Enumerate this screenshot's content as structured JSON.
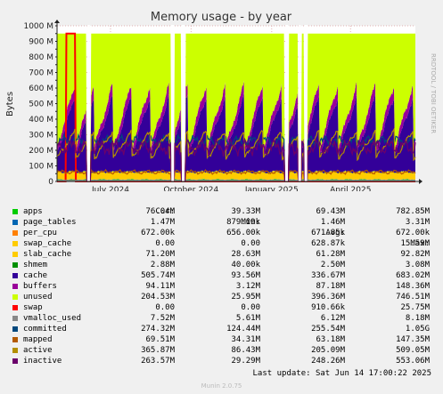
{
  "chart_data": {
    "type": "area",
    "title": "Memory usage - by year",
    "ylabel": "Bytes",
    "side_label": "RRDTOOL / TOBI OETIKER",
    "ylim": [
      0,
      1000
    ],
    "y_unit": "M",
    "y_ticks": [
      "0",
      "50 M",
      "100 M",
      "150 M",
      "200 M",
      "250 M",
      "300 M",
      "350 M",
      "400 M",
      "450 M",
      "500 M",
      "550 M",
      "600 M",
      "650 M",
      "700 M",
      "750 M",
      "800 M",
      "850 M",
      "900 M",
      "950 M",
      "1000 M"
    ],
    "x_ticks": [
      {
        "label": "July 2024",
        "x": "2024-07-01"
      },
      {
        "label": "October 2024",
        "x": "2024-10-01"
      },
      {
        "label": "January 2025",
        "x": "2025-01-01"
      },
      {
        "label": "April 2025",
        "x": "2025-04-01"
      }
    ],
    "x_range": [
      "2024-05-01",
      "2025-06-14"
    ],
    "gaps": [
      "2024-06-06",
      "2024-09-10",
      "2024-09-22",
      "2025-01-18",
      "2025-02-02",
      "2025-02-09"
    ],
    "grid": true,
    "stacked_series": [
      "apps",
      "page_tables",
      "per_cpu",
      "swap_cache",
      "slab_cache",
      "shmem",
      "cache",
      "buffers",
      "unused"
    ],
    "line_series": [
      "swap",
      "vmalloc_used",
      "committed",
      "mapped",
      "active",
      "inactive"
    ],
    "legend_headers": [
      "Cur:",
      "Min:",
      "Avg:",
      "Max:"
    ],
    "series": [
      {
        "name": "apps",
        "color": "#00cc00",
        "cur": "76.04M",
        "min": "39.33M",
        "avg": "69.43M",
        "max": "782.85M"
      },
      {
        "name": "page_tables",
        "color": "#0066b3",
        "cur": "1.47M",
        "min": "879.09k",
        "avg": "1.46M",
        "max": "3.31M"
      },
      {
        "name": "per_cpu",
        "color": "#ff8000",
        "cur": "672.00k",
        "min": "656.00k",
        "avg": "671.85k",
        "max": "672.00k"
      },
      {
        "name": "swap_cache",
        "color": "#ffcc00",
        "cur": "0.00",
        "min": "0.00",
        "avg": "628.87k",
        "max": "15.59M"
      },
      {
        "name": "slab_cache",
        "color": "#ffcc00",
        "cur": "71.20M",
        "min": "28.63M",
        "avg": "61.28M",
        "max": "92.82M"
      },
      {
        "name": "shmem",
        "color": "#008f00",
        "cur": "2.88M",
        "min": "40.00k",
        "avg": "2.50M",
        "max": "3.08M"
      },
      {
        "name": "cache",
        "color": "#330099",
        "cur": "505.74M",
        "min": "93.56M",
        "avg": "336.67M",
        "max": "683.02M"
      },
      {
        "name": "buffers",
        "color": "#990099",
        "cur": "94.11M",
        "min": "3.12M",
        "avg": "87.18M",
        "max": "148.36M"
      },
      {
        "name": "unused",
        "color": "#ccff00",
        "cur": "204.53M",
        "min": "25.95M",
        "avg": "396.36M",
        "max": "746.51M"
      },
      {
        "name": "swap",
        "color": "#ff0000",
        "cur": "0.00",
        "min": "0.00",
        "avg": "910.66k",
        "max": "25.75M"
      },
      {
        "name": "vmalloc_used",
        "color": "#888888",
        "cur": "7.52M",
        "min": "5.61M",
        "avg": "6.12M",
        "max": "8.18M"
      },
      {
        "name": "committed",
        "color": "#00487d",
        "cur": "274.32M",
        "min": "124.44M",
        "avg": "255.54M",
        "max": "1.05G"
      },
      {
        "name": "mapped",
        "color": "#b35a00",
        "cur": "69.51M",
        "min": "34.31M",
        "avg": "63.18M",
        "max": "147.35M"
      },
      {
        "name": "active",
        "color": "#b38f00",
        "cur": "365.87M",
        "min": "86.43M",
        "avg": "205.09M",
        "max": "509.05M"
      },
      {
        "name": "inactive",
        "color": "#6b006b",
        "cur": "263.57M",
        "min": "29.29M",
        "avg": "248.26M",
        "max": "553.06M"
      }
    ]
  },
  "footer": {
    "last_update": "Last update: Sat Jun 14 17:00:22 2025",
    "munin": "Munin 2.0.75"
  }
}
